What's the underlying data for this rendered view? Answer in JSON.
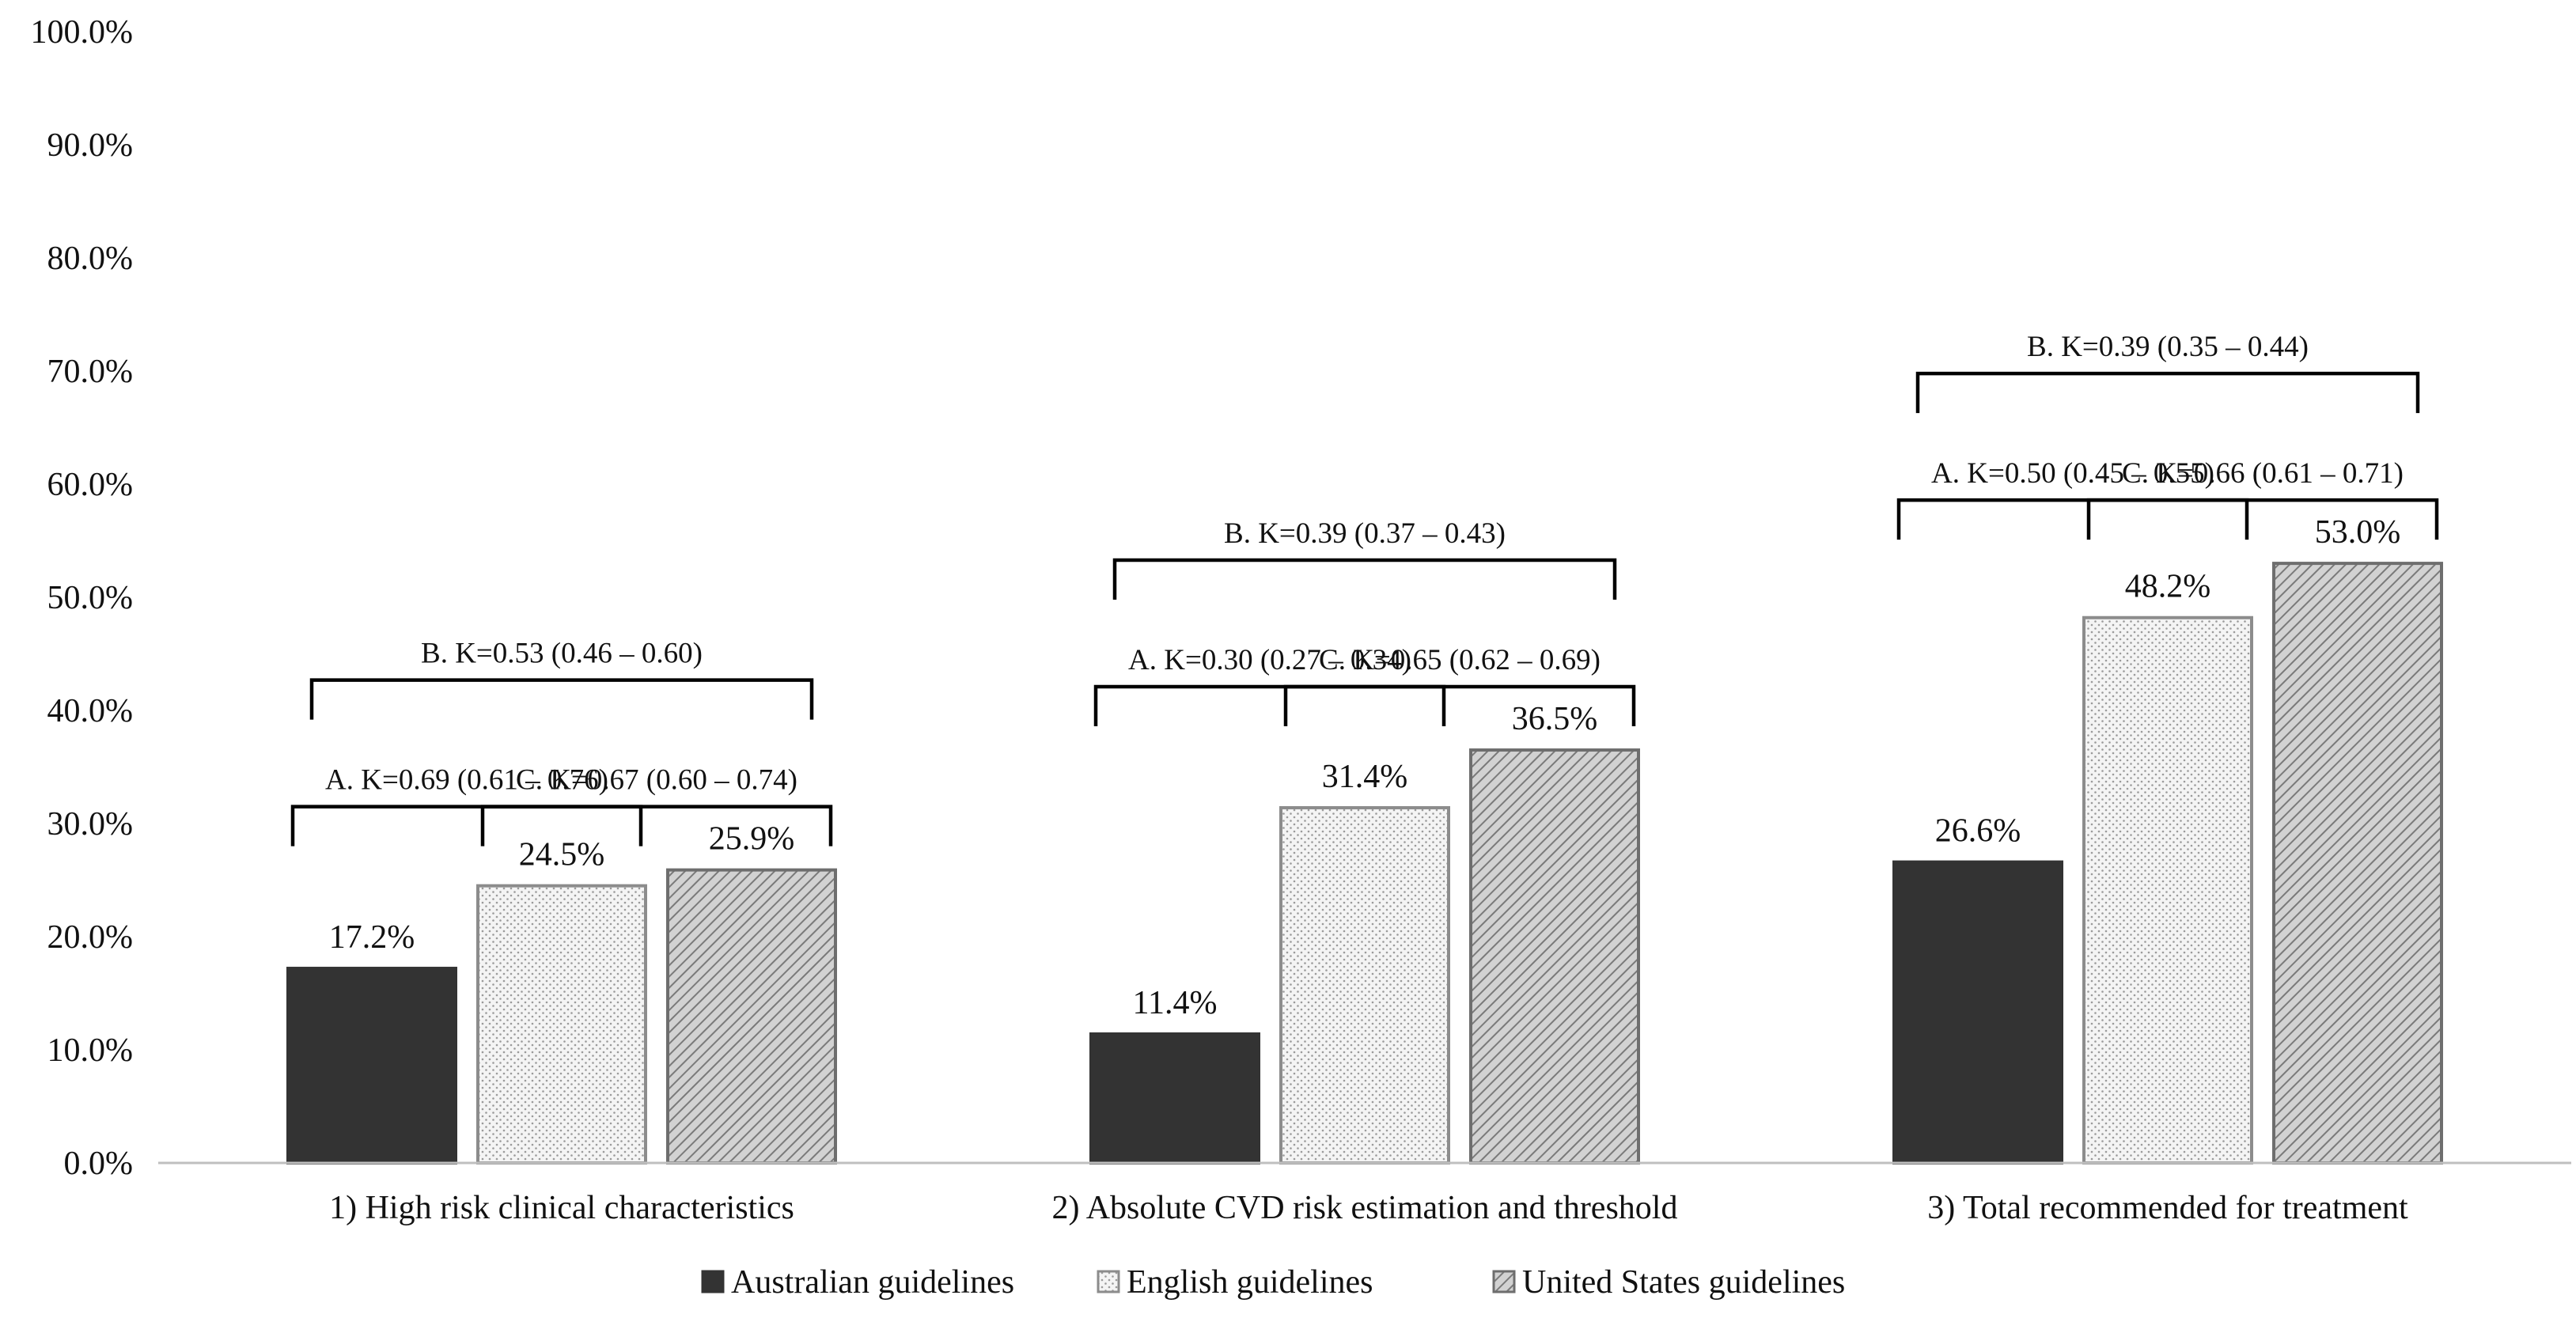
{
  "chart_data": {
    "type": "bar",
    "title": "",
    "xlabel": "",
    "ylabel": "",
    "ylim": [
      0,
      100
    ],
    "yticks": [
      0,
      10,
      20,
      30,
      40,
      50,
      60,
      70,
      80,
      90,
      100
    ],
    "ytick_labels": [
      "0.0%",
      "10.0%",
      "20.0%",
      "30.0%",
      "40.0%",
      "50.0%",
      "60.0%",
      "70.0%",
      "80.0%",
      "90.0%",
      "100.0%"
    ],
    "grid": false,
    "legend_position": "bottom",
    "categories": [
      "1) High risk clinical characteristics",
      "2) Absolute CVD risk estimation and threshold",
      "3) Total recommended for treatment"
    ],
    "series": [
      {
        "name": "Australian guidelines",
        "values": [
          17.2,
          11.4,
          26.6
        ],
        "labels": [
          "17.2%",
          "11.4%",
          "26.6%"
        ],
        "color": "#333333",
        "pattern": "solid"
      },
      {
        "name": "English guidelines",
        "values": [
          24.5,
          31.4,
          48.2
        ],
        "labels": [
          "24.5%",
          "31.4%",
          "48.2%"
        ],
        "color": "#f2f2f2",
        "pattern": "dotted"
      },
      {
        "name": "United States guidelines",
        "values": [
          25.9,
          36.5,
          53.0
        ],
        "labels": [
          "25.9%",
          "36.5%",
          "53.0%"
        ],
        "color": "#c8c8c8",
        "pattern": "diagonal"
      }
    ],
    "annotations": [
      {
        "category": 0,
        "text": "A. K=0.69 (0.61 – 0.76)",
        "from_series": 0,
        "to_series": 1,
        "level": 1
      },
      {
        "category": 0,
        "text": "C. K=0.67 (0.60 – 0.74)",
        "from_series": 1,
        "to_series": 2,
        "level": 1
      },
      {
        "category": 0,
        "text": "B. K=0.53 (0.46 – 0.60)",
        "from_series": 0,
        "to_series": 2,
        "level": 2
      },
      {
        "category": 1,
        "text": "A. K=0.30 (0.27 – 0.34)",
        "from_series": 0,
        "to_series": 1,
        "level": 1
      },
      {
        "category": 1,
        "text": "C. K=0.65 (0.62 – 0.69)",
        "from_series": 1,
        "to_series": 2,
        "level": 1
      },
      {
        "category": 1,
        "text": "B. K=0.39 (0.37 – 0.43)",
        "from_series": 0,
        "to_series": 2,
        "level": 2
      },
      {
        "category": 2,
        "text": "A. K=0.50 (0.45 – 0.55)",
        "from_series": 0,
        "to_series": 1,
        "level": 1
      },
      {
        "category": 2,
        "text": "C. K=0.66 (0.61 – 0.71)",
        "from_series": 1,
        "to_series": 2,
        "level": 1
      },
      {
        "category": 2,
        "text": "B. K=0.39 (0.35 – 0.44)",
        "from_series": 0,
        "to_series": 2,
        "level": 2
      }
    ]
  }
}
